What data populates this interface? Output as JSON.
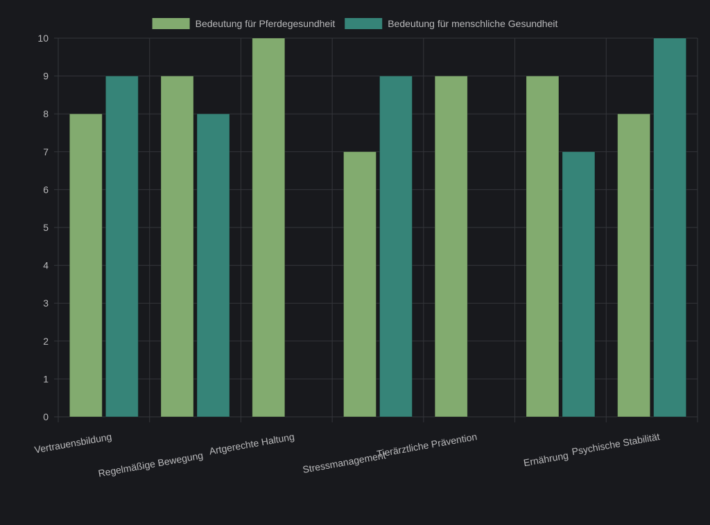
{
  "chart_data": {
    "type": "bar",
    "title": "",
    "xlabel": "",
    "ylabel": "",
    "categories": [
      "Vertrauensbildung",
      "Regelmäßige Bewegung",
      "Artgerechte Haltung",
      "Stressmanagement",
      "Tierärztliche Prävention",
      "Ernährung",
      "Psychische Stabilität"
    ],
    "series": [
      {
        "name": "Bedeutung für Pferdegesundheit",
        "values": [
          8,
          9,
          10,
          7,
          9,
          9,
          8
        ],
        "color": "#82ab6f"
      },
      {
        "name": "Bedeutung für menschliche Gesundheit",
        "values": [
          9,
          8,
          null,
          9,
          null,
          7,
          10
        ],
        "color": "#368478"
      }
    ],
    "ylim": [
      0,
      10
    ],
    "yticks": [
      0,
      1,
      2,
      3,
      4,
      5,
      6,
      7,
      8,
      9,
      10
    ],
    "grid": true,
    "legend_position": "top-center"
  },
  "colors": {
    "background": "#18191d",
    "grid": "#34363b",
    "text": "#b9b9bb"
  }
}
